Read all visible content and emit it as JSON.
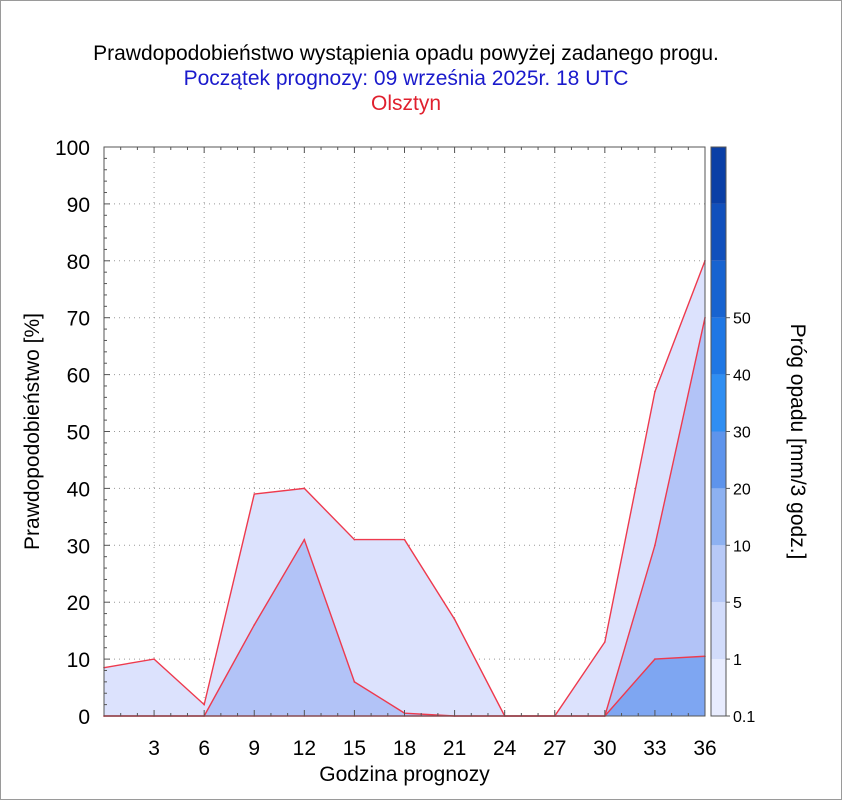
{
  "title": "Prawdopodobieństwo wystąpienia opadu powyżej zadanego progu.",
  "subtitle": "Początek prognozy: 09 września 2025r. 18 UTC",
  "location": "Olsztyn",
  "colors": {
    "title": "#000000",
    "subtitle": "#1a1acc",
    "location": "#e0202e",
    "series_line": "#ee3a4e"
  },
  "chart_data": {
    "type": "area",
    "xlabel": "Godzina prognozy",
    "ylabel": "Prawdopodobieństwo [%]",
    "xlim": [
      0,
      36
    ],
    "ylim": [
      0,
      100
    ],
    "x": [
      0,
      3,
      6,
      9,
      12,
      15,
      18,
      21,
      24,
      27,
      30,
      33,
      36
    ],
    "xticks": [
      "3",
      "6",
      "9",
      "12",
      "15",
      "18",
      "21",
      "24",
      "27",
      "30",
      "33",
      "36"
    ],
    "yticks": [
      "0",
      "10",
      "20",
      "30",
      "40",
      "50",
      "60",
      "70",
      "80",
      "90",
      "100"
    ],
    "grid": "dotted",
    "series": [
      {
        "name": "0.1",
        "color": "#dce2fd",
        "values": [
          8.5,
          10,
          2,
          39,
          40,
          31,
          31,
          17,
          0,
          0,
          13,
          57,
          80
        ]
      },
      {
        "name": "1",
        "color": "#b2c3f7",
        "values": [
          0,
          0,
          0,
          16,
          31,
          6,
          0.5,
          0,
          0,
          0,
          0,
          30,
          70
        ]
      },
      {
        "name": "5",
        "color": "#7ea6f2",
        "values": [
          0,
          0,
          0,
          0,
          0,
          0,
          0,
          0,
          0,
          0,
          0,
          10,
          10.5
        ]
      }
    ],
    "colorbar": {
      "label": "Próg opadu [mm/3 godz.]",
      "ticks": [
        "0.1",
        "1",
        "5",
        "10",
        "20",
        "30",
        "40",
        "50"
      ],
      "colors": [
        "#e8ecfe",
        "#d2dcfb",
        "#b7c9f7",
        "#8db1f1",
        "#5e94ec",
        "#2f8ef2",
        "#1f77e4",
        "#1763d0",
        "#1150bc",
        "#0a3fa6"
      ]
    }
  }
}
